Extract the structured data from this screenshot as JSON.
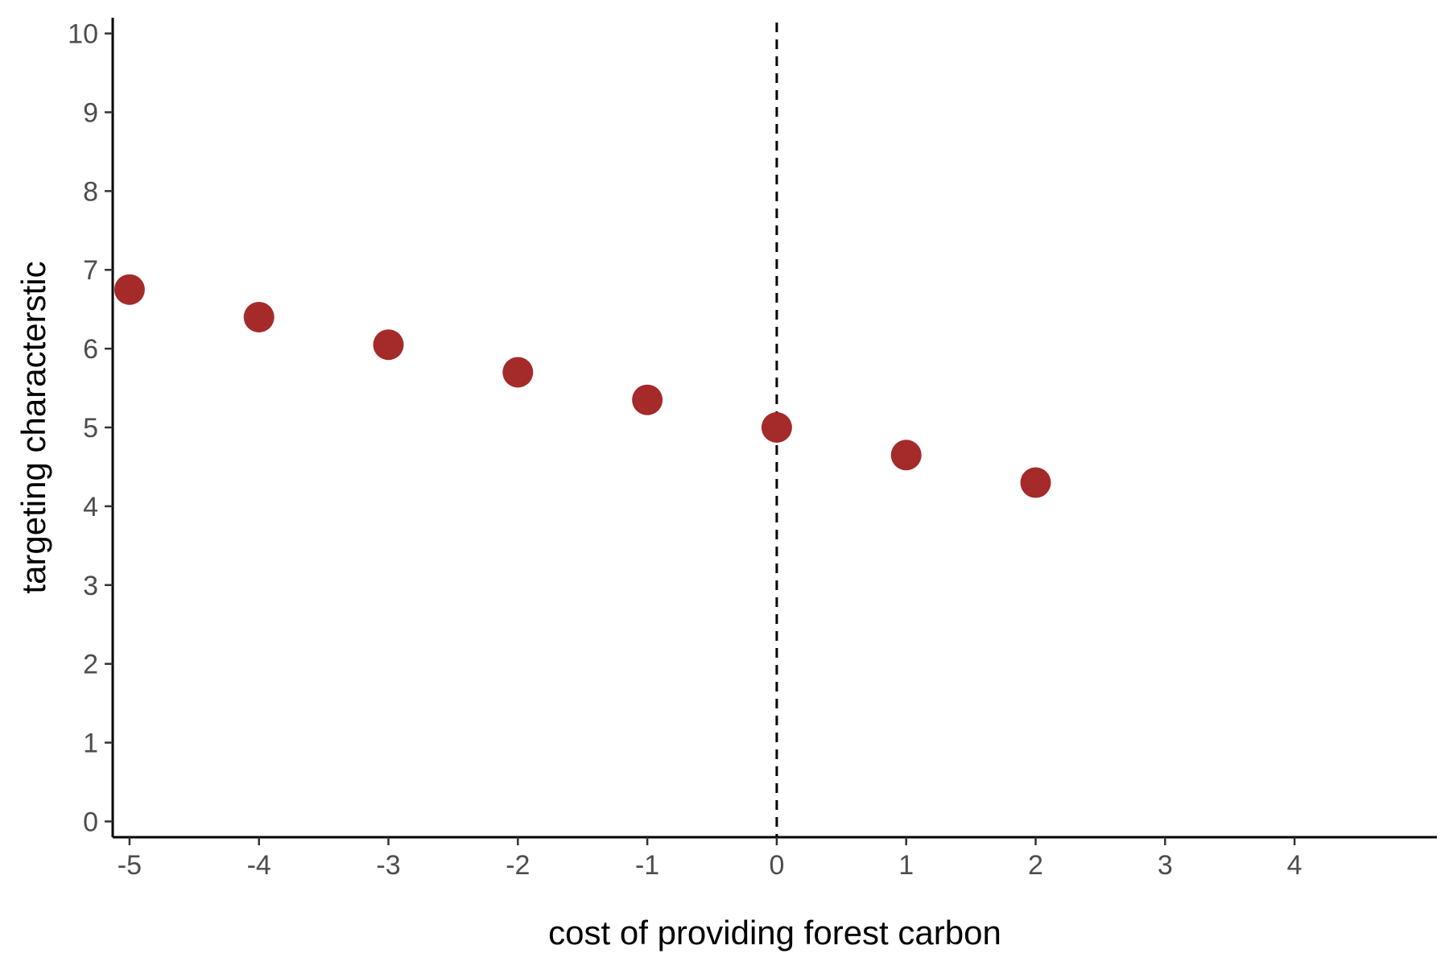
{
  "chart_data": {
    "type": "scatter",
    "title": "",
    "xlabel": "cost of providing forest carbon",
    "ylabel": "targeting characterstic",
    "xlim": [
      -5.13,
      5.1
    ],
    "ylim": [
      -0.2,
      10.2
    ],
    "x_ticks": [
      -5,
      -4,
      -3,
      -2,
      -1,
      0,
      1,
      2,
      3,
      4
    ],
    "y_ticks": [
      0,
      1,
      2,
      3,
      4,
      5,
      6,
      7,
      8,
      9,
      10
    ],
    "x_tick_labels": [
      "-5",
      "-4",
      "-3",
      "-2",
      "-1",
      "0",
      "1",
      "2",
      "3",
      "4"
    ],
    "y_tick_labels": [
      "0",
      "1",
      "2",
      "3",
      "4",
      "5",
      "6",
      "7",
      "8",
      "9",
      "10"
    ],
    "grid": false,
    "legend": "none",
    "reference_line": {
      "axis": "x",
      "value": 0,
      "style": "dashed",
      "color": "#000000"
    },
    "point_color": "#a52a2a",
    "x": [
      -5,
      -4,
      -3,
      -2,
      -1,
      0,
      1,
      2
    ],
    "y": [
      6.75,
      6.4,
      6.05,
      5.7,
      5.35,
      5.0,
      4.65,
      4.3
    ]
  }
}
